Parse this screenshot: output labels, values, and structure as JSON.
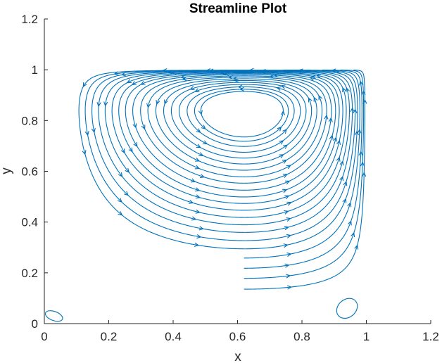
{
  "chart_data": {
    "type": "streamline",
    "title": "Streamline Plot",
    "xlabel": "x",
    "ylabel": "y",
    "xlim": [
      0,
      1.2
    ],
    "ylim": [
      0,
      1.2
    ],
    "xticks": [
      "0",
      "0.2",
      "0.4",
      "0.6",
      "0.8",
      "1",
      "1.2"
    ],
    "yticks": [
      "0",
      "0.2",
      "0.4",
      "0.6",
      "0.8",
      "1",
      "1.2"
    ],
    "grid": false,
    "line_color": "#0072BD",
    "domain": {
      "x": [
        0,
        1
      ],
      "y": [
        0,
        1
      ]
    },
    "primary_vortex_center": {
      "x": 0.62,
      "y": 0.74
    },
    "corner_eddies": [
      {
        "x": 0.03,
        "y": 0.03
      },
      {
        "x": 0.94,
        "y": 0.06
      }
    ],
    "lid_velocity_direction": "left-to-right at y = 1",
    "rotation": "clockwise"
  }
}
